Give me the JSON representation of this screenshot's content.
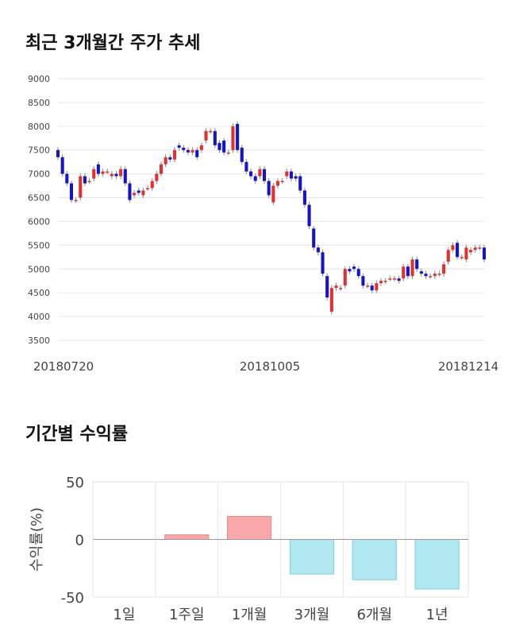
{
  "sections": {
    "price_title": "최근 3개월간 주가 추세",
    "returns_title": "기간별 수익률"
  },
  "colors": {
    "up": "#e03030",
    "down": "#1414c8",
    "wick": "#888888",
    "grid": "#e6e6e6",
    "positive_bar": "#f8a8a8",
    "negative_bar": "#b0e8f2",
    "zero_line": "#999999"
  },
  "chart_data": [
    {
      "type": "candlestick",
      "title": "최근 3개월간 주가 추세",
      "ylim": [
        3500,
        9000
      ],
      "yticks": [
        3500,
        4000,
        4500,
        5000,
        5500,
        6000,
        6500,
        7000,
        7500,
        8000,
        8500,
        9000
      ],
      "xticks": [
        "20180720",
        "20181005",
        "20181214"
      ],
      "grid": true,
      "candles": [
        {
          "o": 7500,
          "c": 7350
        },
        {
          "o": 7350,
          "c": 7000
        },
        {
          "o": 7000,
          "c": 6800
        },
        {
          "o": 6800,
          "c": 6450
        },
        {
          "o": 6450,
          "c": 6450
        },
        {
          "o": 6500,
          "c": 6950
        },
        {
          "o": 6950,
          "c": 6800
        },
        {
          "o": 6850,
          "c": 6850
        },
        {
          "o": 6900,
          "c": 7100
        },
        {
          "o": 7200,
          "c": 7000
        },
        {
          "o": 7000,
          "c": 7050
        },
        {
          "o": 7050,
          "c": 7050
        },
        {
          "o": 6950,
          "c": 7000
        },
        {
          "o": 7000,
          "c": 6950
        },
        {
          "o": 6950,
          "c": 7100
        },
        {
          "o": 7100,
          "c": 6800
        },
        {
          "o": 6800,
          "c": 6450
        },
        {
          "o": 6550,
          "c": 6600
        },
        {
          "o": 6650,
          "c": 6600
        },
        {
          "o": 6550,
          "c": 6650
        },
        {
          "o": 6700,
          "c": 6700
        },
        {
          "o": 6700,
          "c": 6850
        },
        {
          "o": 6850,
          "c": 7000
        },
        {
          "o": 7000,
          "c": 7200
        },
        {
          "o": 7200,
          "c": 7350
        },
        {
          "o": 7350,
          "c": 7300
        },
        {
          "o": 7300,
          "c": 7500
        },
        {
          "o": 7600,
          "c": 7550
        },
        {
          "o": 7550,
          "c": 7500
        },
        {
          "o": 7500,
          "c": 7450
        },
        {
          "o": 7450,
          "c": 7500
        },
        {
          "o": 7500,
          "c": 7350
        },
        {
          "o": 7500,
          "c": 7600
        },
        {
          "o": 7700,
          "c": 7900
        },
        {
          "o": 7900,
          "c": 7900
        },
        {
          "o": 7900,
          "c": 7600
        },
        {
          "o": 7650,
          "c": 7500
        },
        {
          "o": 7700,
          "c": 7450
        },
        {
          "o": 7450,
          "c": 7450
        },
        {
          "o": 7500,
          "c": 8000
        },
        {
          "o": 8050,
          "c": 7500
        },
        {
          "o": 7550,
          "c": 7250
        },
        {
          "o": 7250,
          "c": 7050
        },
        {
          "o": 7050,
          "c": 6950
        },
        {
          "o": 6950,
          "c": 6850
        },
        {
          "o": 6950,
          "c": 7100
        },
        {
          "o": 7100,
          "c": 6850
        },
        {
          "o": 6850,
          "c": 6550
        },
        {
          "o": 6400,
          "c": 6750
        },
        {
          "o": 6750,
          "c": 6850
        },
        {
          "o": 6850,
          "c": 6850
        },
        {
          "o": 6950,
          "c": 7050
        },
        {
          "o": 7050,
          "c": 6900
        },
        {
          "o": 6950,
          "c": 6900
        },
        {
          "o": 6950,
          "c": 6650
        },
        {
          "o": 6650,
          "c": 6350
        },
        {
          "o": 6350,
          "c": 5900
        },
        {
          "o": 5850,
          "c": 5450
        },
        {
          "o": 5450,
          "c": 5350
        },
        {
          "o": 5350,
          "c": 4900
        },
        {
          "o": 4850,
          "c": 4400
        },
        {
          "o": 4100,
          "c": 4600
        },
        {
          "o": 4600,
          "c": 4650
        },
        {
          "o": 4600,
          "c": 4600
        },
        {
          "o": 4650,
          "c": 5000
        },
        {
          "o": 5000,
          "c": 4950
        },
        {
          "o": 5050,
          "c": 5000
        },
        {
          "o": 5000,
          "c": 4850
        },
        {
          "o": 4850,
          "c": 4650
        },
        {
          "o": 4650,
          "c": 4650
        },
        {
          "o": 4650,
          "c": 4550
        },
        {
          "o": 4550,
          "c": 4700
        },
        {
          "o": 4700,
          "c": 4750
        },
        {
          "o": 4750,
          "c": 4750
        },
        {
          "o": 4800,
          "c": 4800
        },
        {
          "o": 4800,
          "c": 4800
        },
        {
          "o": 4800,
          "c": 4750
        },
        {
          "o": 4800,
          "c": 5050
        },
        {
          "o": 5050,
          "c": 4850
        },
        {
          "o": 4850,
          "c": 5200
        },
        {
          "o": 5200,
          "c": 5000
        },
        {
          "o": 4950,
          "c": 4900
        },
        {
          "o": 4900,
          "c": 4850
        },
        {
          "o": 4850,
          "c": 4850
        },
        {
          "o": 4850,
          "c": 4900
        },
        {
          "o": 4900,
          "c": 4900
        },
        {
          "o": 4900,
          "c": 5100
        },
        {
          "o": 5150,
          "c": 5400
        },
        {
          "o": 5400,
          "c": 5500
        },
        {
          "o": 5550,
          "c": 5250
        },
        {
          "o": 5250,
          "c": 5250
        },
        {
          "o": 5200,
          "c": 5450
        },
        {
          "o": 5350,
          "c": 5400
        },
        {
          "o": 5400,
          "c": 5450
        },
        {
          "o": 5450,
          "c": 5450
        },
        {
          "o": 5450,
          "c": 5200
        }
      ]
    },
    {
      "type": "bar",
      "title": "기간별 수익률",
      "ylabel": "수익률(%)",
      "categories": [
        "1일",
        "1주일",
        "1개월",
        "3개월",
        "6개월",
        "1년"
      ],
      "values": [
        0,
        4,
        20,
        -30,
        -35,
        -43
      ],
      "ylim": [
        -50,
        50
      ],
      "yticks": [
        -50,
        0,
        50
      ],
      "grid": true
    }
  ]
}
